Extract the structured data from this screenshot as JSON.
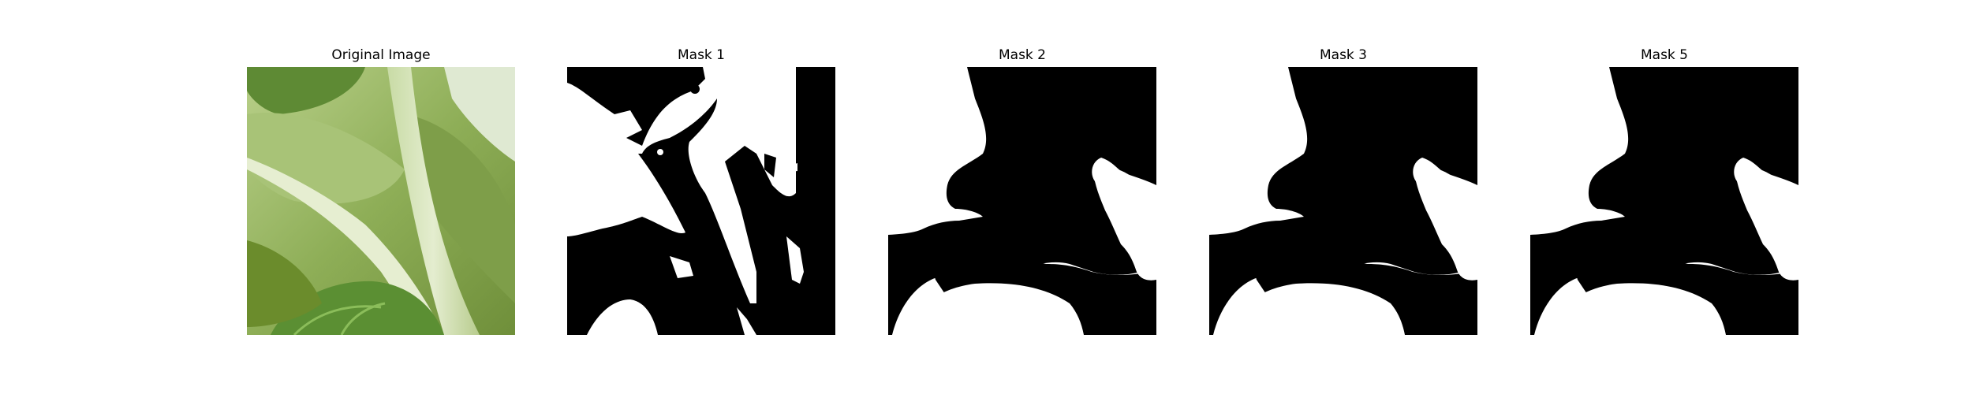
{
  "panels": [
    {
      "title": "Original Image"
    },
    {
      "title": "Mask 1"
    },
    {
      "title": "Mask 2"
    },
    {
      "title": "Mask 3"
    },
    {
      "title": "Mask 5"
    }
  ],
  "colors": {
    "mask_foreground": "#ffffff",
    "mask_background": "#000000",
    "leaf_light": "#c9dca0",
    "leaf_mid": "#8fae5a",
    "leaf_dark": "#4f7a2a",
    "stem": "#dfe8c7"
  }
}
